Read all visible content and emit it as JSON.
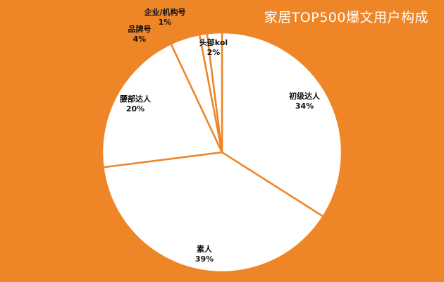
{
  "chart_data": {
    "type": "pie",
    "title": "家居TOP500爆文用户构成",
    "slices": [
      {
        "label": "初级达人",
        "value": 34,
        "value_label": "34%"
      },
      {
        "label": "素人",
        "value": 39,
        "value_label": "39%"
      },
      {
        "label": "腰部达人",
        "value": 20,
        "value_label": "20%"
      },
      {
        "label": "品牌号",
        "value": 4,
        "value_label": "4%"
      },
      {
        "label": "企业/机构号",
        "value": 1,
        "value_label": "1%"
      },
      {
        "label": "头部kol",
        "value": 2,
        "value_label": "2%"
      }
    ],
    "colors": {
      "background": "#EE8526",
      "slice_fill": "#FFFFFF",
      "slice_border": "#EE8526",
      "label_text": "#111111",
      "title_text": "#FFFFFF"
    }
  }
}
